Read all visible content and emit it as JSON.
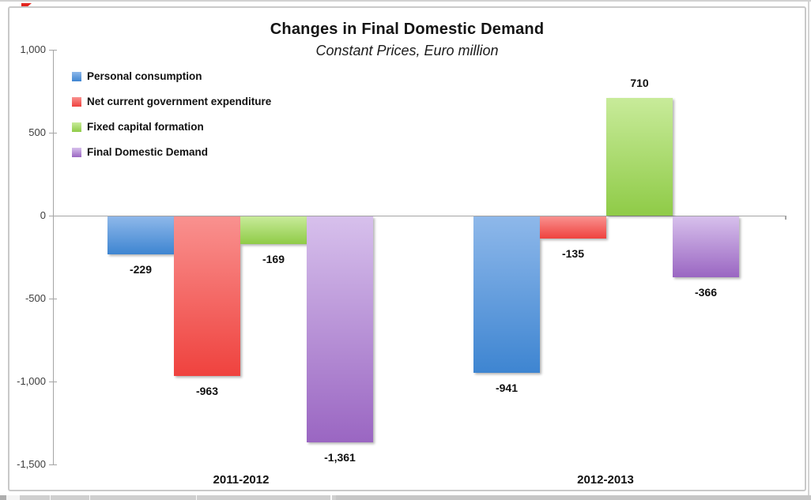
{
  "chart_data": {
    "type": "bar",
    "title": "Changes in Final Domestic Demand",
    "subtitle": "Constant Prices, Euro million",
    "categories": [
      "2011-2012",
      "2012-2013"
    ],
    "series": [
      {
        "name": "Personal consumption",
        "values": [
          -229,
          -941
        ],
        "labels": [
          "-229",
          "-941"
        ],
        "color_top": "#8EB8EA",
        "color_bottom": "#3E85D1"
      },
      {
        "name": "Net current government expenditure",
        "values": [
          -963,
          -135
        ],
        "labels": [
          "-963",
          "-135"
        ],
        "color_top": "#F9918F",
        "color_bottom": "#EF423E"
      },
      {
        "name": "Fixed capital formation",
        "values": [
          -169,
          710
        ],
        "labels": [
          "-169",
          "710"
        ],
        "color_top": "#C8EB9A",
        "color_bottom": "#8FCB47"
      },
      {
        "name": "Final Domestic Demand",
        "values": [
          -1361,
          -366
        ],
        "labels": [
          "-1,361",
          "-366"
        ],
        "color_top": "#D7C0EC",
        "color_bottom": "#9A66C2"
      }
    ],
    "y_ticks": [
      {
        "label": "1,000",
        "value": 1000
      },
      {
        "label": "500",
        "value": 500
      },
      {
        "label": "0",
        "value": 0
      },
      {
        "label": "-500",
        "value": -500
      },
      {
        "label": "-1,000",
        "value": -1000
      },
      {
        "label": "-1,500",
        "value": -1500
      }
    ],
    "ylim": [
      -1500,
      1000
    ],
    "legend_position": "top-left",
    "grid": false,
    "axis_color": "#a5a5a5",
    "marker_color": "#e3261f"
  }
}
